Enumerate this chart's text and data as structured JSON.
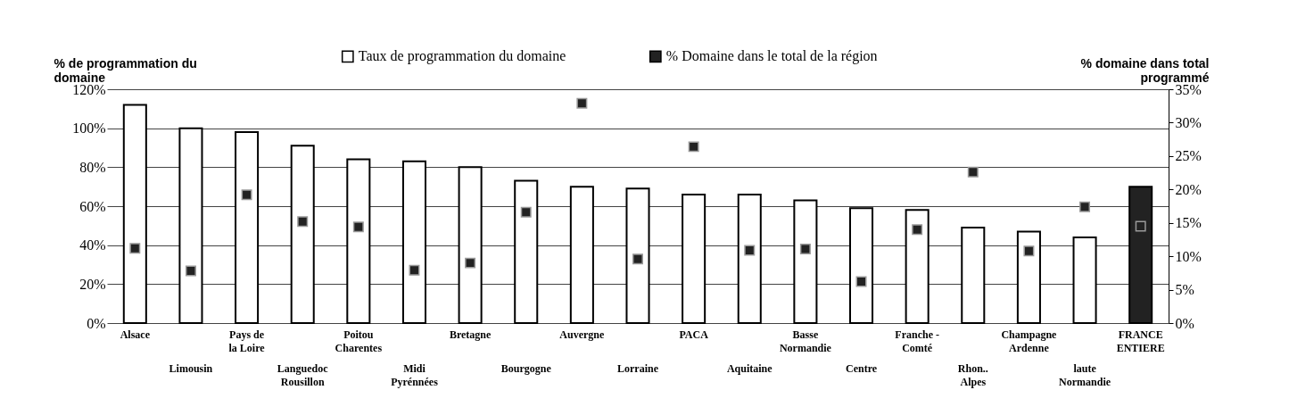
{
  "chart_data": {
    "type": "bar",
    "categories": [
      "Alsace",
      "Limousin",
      "Pays de\nla Loire",
      "Languedoc\nRousillon",
      "Poitou\nCharentes",
      "Midi\nPyrénnées",
      "Bretagne",
      "Bourgogne",
      "Auvergne",
      "Lorraine",
      "PACA",
      "Aquitaine",
      "Basse\nNormandie",
      "Centre",
      "Franche -\nComté",
      "Rhon..\nAlpes",
      "Champagne\nArdenne",
      "laute\nNormandie",
      "FRANCE\nENTIERE"
    ],
    "ylabel": "% de programmation du\ndomaine",
    "y2label": "% domaine dans total\nprogrammé",
    "series": [
      {
        "name": "Taux de programmation du domaine",
        "color": "#ffffff",
        "colors": [
          "#ffffff",
          "#ffffff",
          "#ffffff",
          "#ffffff",
          "#ffffff",
          "#ffffff",
          "#ffffff",
          "#ffffff",
          "#ffffff",
          "#ffffff",
          "#ffffff",
          "#ffffff",
          "#ffffff",
          "#ffffff",
          "#ffffff",
          "#ffffff",
          "#ffffff",
          "#ffffff",
          "#222222"
        ],
        "values": [
          112,
          100,
          98,
          91,
          84,
          83,
          80,
          73,
          70,
          69,
          66,
          66,
          63,
          59,
          58,
          49,
          47,
          44,
          70
        ]
      },
      {
        "name": "% Domaine dans le total de la région",
        "type": "scatter",
        "axis": "y2",
        "color": "#222222",
        "marker": "square",
        "values": [
          11.2,
          7.8,
          19.2,
          15.2,
          14.4,
          7.9,
          9.0,
          16.6,
          32.9,
          9.6,
          26.4,
          10.9,
          11.1,
          6.2,
          14.0,
          22.6,
          10.8,
          17.4,
          14.5
        ]
      }
    ],
    "ylim": [
      0,
      120
    ],
    "yticks": [
      {
        "value": 0,
        "label": "0%"
      },
      {
        "value": 20,
        "label": "20%"
      },
      {
        "value": 40,
        "label": "40%"
      },
      {
        "value": 60,
        "label": "60%"
      },
      {
        "value": 80,
        "label": "80%"
      },
      {
        "value": 100,
        "label": "100%"
      },
      {
        "value": 120,
        "label": "120%"
      }
    ],
    "y2lim": [
      0,
      35
    ],
    "y2ticks": [
      {
        "value": 0,
        "label": "0%"
      },
      {
        "value": 5,
        "label": "5%"
      },
      {
        "value": 10,
        "label": "10%"
      },
      {
        "value": 15,
        "label": "15%"
      },
      {
        "value": 20,
        "label": "20%"
      },
      {
        "value": 25,
        "label": "25%"
      },
      {
        "value": 30,
        "label": "30%"
      },
      {
        "value": 35,
        "label": "35%"
      }
    ],
    "grid": "y",
    "legend": "top"
  }
}
